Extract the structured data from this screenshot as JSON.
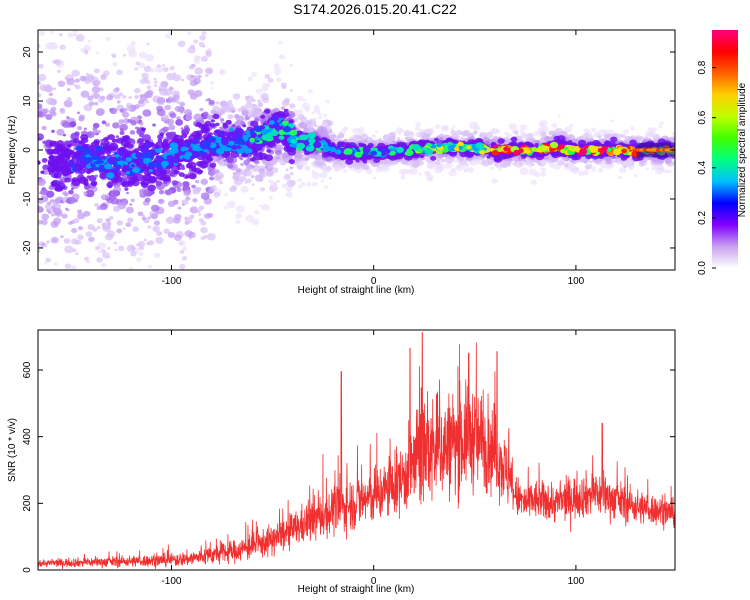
{
  "title": "S174.2026.015.20.41.C22",
  "colors": {
    "snr_line": "#f03030",
    "frame": "#000000",
    "scatter_light": "#e2d0fa",
    "scatter_dark": "#7a1ef0"
  },
  "chart_data": [
    {
      "type": "heatmap",
      "title": "S174.2026.015.20.41.C22",
      "xlabel": "Height of straight line (km)",
      "ylabel": "Frequency (Hz)",
      "xlim": [
        -166,
        149
      ],
      "ylim": [
        -24.5,
        24.5
      ],
      "x_ticks": [
        -100,
        0,
        100
      ],
      "x_tick_labels": [
        "-100",
        "0",
        "100"
      ],
      "y_ticks": [
        -20,
        -10,
        0,
        10,
        20
      ],
      "y_tick_labels": [
        "-20",
        "-10",
        "0",
        "10",
        "20"
      ],
      "ridge": {
        "description": "dominant spectral ridge",
        "x": [
          -150,
          -120,
          -100,
          -80,
          -60,
          -45,
          -40,
          -30,
          -20,
          -10,
          0,
          10,
          20,
          30,
          40,
          50,
          60,
          70,
          80,
          90,
          100,
          110,
          120,
          130,
          149
        ],
        "y": [
          -2,
          -2.5,
          -1.5,
          1.5,
          1.5,
          5,
          2,
          1.5,
          0,
          -0.5,
          -0.5,
          0,
          0,
          0.5,
          0.5,
          0.5,
          0,
          0,
          0,
          0.5,
          0,
          0,
          0,
          0,
          0
        ]
      },
      "colorbar": {
        "label": "Normalized spectral amplitude",
        "range": [
          0,
          0.95
        ],
        "ticks": [
          0.0,
          0.2,
          0.4,
          0.6,
          0.8
        ],
        "tick_labels": [
          "0.0",
          "0.2",
          "0.4",
          "0.6",
          "0.8"
        ],
        "colors": [
          "#ffffff",
          "#c8a0f0",
          "#8000ff",
          "#0000ff",
          "#00c0ff",
          "#00ff80",
          "#40ff00",
          "#c0ff00",
          "#ffd000",
          "#ff6000",
          "#ff0000",
          "#ff0080"
        ]
      }
    },
    {
      "type": "line",
      "xlabel": "Height of straight line (km)",
      "ylabel": "SNR (10 * v/v)",
      "xlim": [
        -166,
        149
      ],
      "ylim": [
        0,
        720
      ],
      "x_ticks": [
        -100,
        0,
        100
      ],
      "x_tick_labels": [
        "-100",
        "0",
        "100"
      ],
      "y_ticks": [
        0,
        200,
        400,
        600
      ],
      "y_tick_labels": [
        "0",
        "200",
        "400",
        "600"
      ],
      "series": [
        {
          "name": "SNR",
          "envelope_x": [
            -166,
            -150,
            -130,
            -110,
            -100,
            -90,
            -80,
            -70,
            -60,
            -50,
            -40,
            -30,
            -20,
            -10,
            0,
            10,
            15,
            20,
            25,
            30,
            35,
            40,
            45,
            50,
            55,
            60,
            65,
            70,
            75,
            80,
            90,
            100,
            110,
            120,
            130,
            140,
            149
          ],
          "envelope_mean": [
            20,
            22,
            25,
            28,
            30,
            35,
            45,
            55,
            70,
            90,
            120,
            150,
            180,
            200,
            220,
            250,
            280,
            320,
            350,
            360,
            370,
            380,
            390,
            400,
            380,
            360,
            300,
            220,
            200,
            210,
            200,
            220,
            230,
            210,
            190,
            180,
            170
          ],
          "envelope_spread": [
            8,
            10,
            12,
            14,
            15,
            18,
            22,
            25,
            30,
            35,
            40,
            50,
            55,
            60,
            65,
            70,
            80,
            110,
            120,
            120,
            120,
            120,
            120,
            120,
            110,
            100,
            80,
            50,
            45,
            45,
            45,
            50,
            50,
            45,
            40,
            35,
            30
          ],
          "peaks": [
            [
              -16,
              595
            ],
            [
              18,
              665
            ],
            [
              24,
              712
            ],
            [
              47,
              650
            ],
            [
              61,
              655
            ],
            [
              113,
              440
            ]
          ]
        }
      ]
    }
  ]
}
